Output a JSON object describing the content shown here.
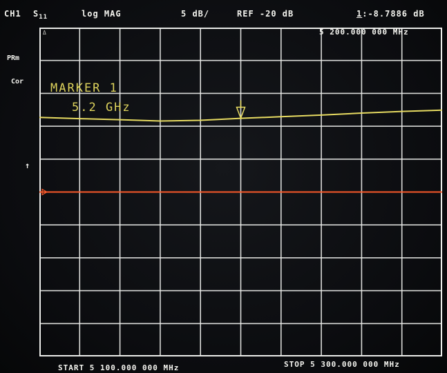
{
  "header": {
    "channel": "CH1",
    "param_main": "S",
    "param_sub": "11",
    "format": "log MAG",
    "scale": "5 dB/",
    "ref": "REF -20 dB",
    "marker_id": "1",
    "marker_readout": ":-8.7886 dB",
    "marker_freq": "5 200.000 000 MHz"
  },
  "side": {
    "prm": "PRm",
    "cor": "Cor",
    "delta_hint": "Δ"
  },
  "marker": {
    "title": "MARKER 1",
    "freq": "5.2 GHz"
  },
  "footer": {
    "start": "START 5 100.000 000 MHz",
    "stop": "STOP 5 300.000 000 MHz"
  },
  "colors": {
    "trace_s11": "#e8dc62",
    "ref_line": "#ff5a2a",
    "grid": "#ecedea",
    "text": "#f4f4ef"
  },
  "chart_data": {
    "type": "line",
    "xlabel": "",
    "ylabel": "",
    "x_range_mhz": [
      5100,
      5300
    ],
    "y_range_db": [
      -45,
      5
    ],
    "reference_level_db": -20,
    "scale_db_per_div": 5,
    "grid": true,
    "series": [
      {
        "name": "S11",
        "x": [
          5100,
          5120,
          5140,
          5160,
          5180,
          5200,
          5220,
          5240,
          5260,
          5280,
          5300
        ],
        "y": [
          -8.65,
          -8.85,
          -9.0,
          -9.2,
          -9.1,
          -8.79,
          -8.55,
          -8.3,
          -8.0,
          -7.75,
          -7.55
        ]
      }
    ],
    "marker": {
      "x": 5200,
      "y": -8.7886
    }
  }
}
